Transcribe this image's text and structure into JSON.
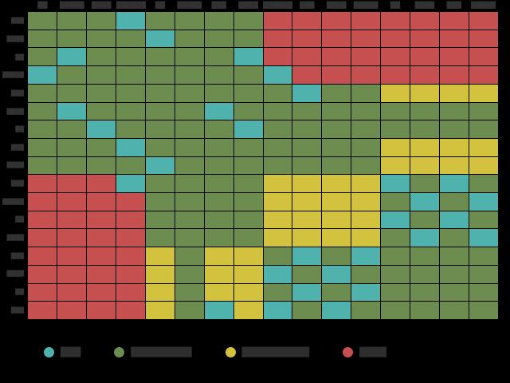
{
  "figure": {
    "background": "#000000",
    "label_color": "#323232"
  },
  "chart_data": {
    "type": "heatmap",
    "title": "",
    "xlabel": "",
    "ylabel": "",
    "grid": "on",
    "legend_position": "bottom",
    "columns": [
      "██",
      "█████",
      "████",
      "███████",
      "██",
      "█████",
      "███",
      "████",
      "██████",
      "███",
      "████",
      "█████",
      "██",
      "████",
      "███",
      "█████"
    ],
    "rows": [
      "███",
      "████",
      "██",
      "█████",
      "███",
      "████",
      "██",
      "███",
      "████",
      "███",
      "█████",
      "██",
      "████",
      "███",
      "████",
      "██",
      "███"
    ],
    "color_map": {
      "T": "#4fb2ad",
      "G": "#6d8c4f",
      "Y": "#d2c23d",
      "R": "#c64f4f"
    },
    "cell_codes": [
      "GGGTGGGGRRRRRRRR",
      "GGGGTGGGRRRRRRRR",
      "GTGGGGGTRRRRRRRR",
      "TGGGGGGGTRRRRRRR",
      "GGGGGGGGGTGGYYYY",
      "GTGGGGTGGGGGGGGG",
      "GGTGGGGTGGGGGGGG",
      "GGGTGGGGGGGGYYYY",
      "GGGGTGGGGGGGYYYY",
      "RRRTGGGGYYYYTGTG",
      "RRRRGGGGYYYYGTGT",
      "RRRRGGGGYYYYTGTG",
      "RRRRGGGGYYYYGTGT",
      "RRRRYGYYGTGTGGGG",
      "RRRRYGYYTGTGGGGG",
      "RRRRYGYYGTGTGGGG",
      "RRRRYGTYTGTGGGGG"
    ],
    "legend": [
      {
        "code": "T",
        "color": "#4fb2ad",
        "label": "███"
      },
      {
        "code": "G",
        "color": "#6d8c4f",
        "label": "█████████"
      },
      {
        "code": "Y",
        "color": "#d2c23d",
        "label": "██████████"
      },
      {
        "code": "R",
        "color": "#c64f4f",
        "label": "████"
      }
    ]
  }
}
